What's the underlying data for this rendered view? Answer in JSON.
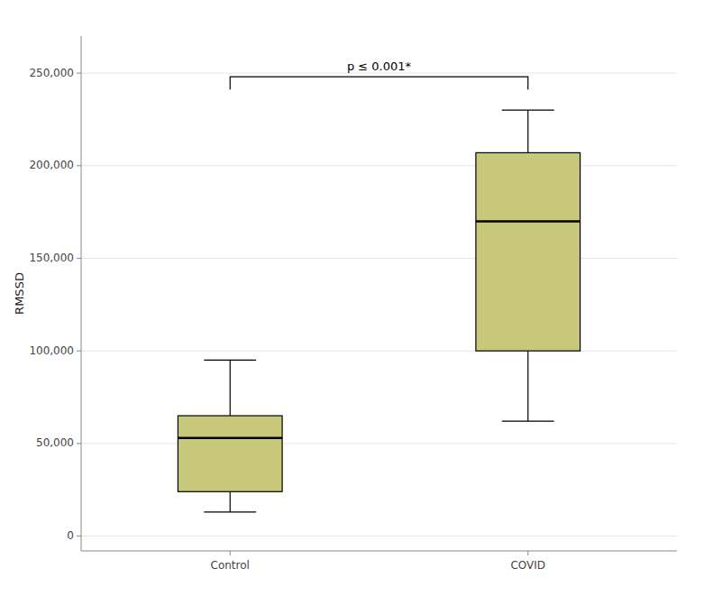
{
  "chart_data": {
    "type": "box",
    "categories": [
      "Control",
      "COVID"
    ],
    "whislo": [
      13000,
      62000
    ],
    "q1": [
      24000,
      100000
    ],
    "med": [
      53000,
      170000
    ],
    "q3": [
      65000,
      207000
    ],
    "whishi": [
      95000,
      230000
    ],
    "color": "#c8c87a",
    "ylabel": "RMSSD",
    "ylim": [
      -8000,
      270000
    ],
    "yticks": [
      0,
      {
        "value": 50000,
        "label": "50,000"
      },
      {
        "value": 100000,
        "label": "100,000"
      },
      {
        "value": 150000,
        "label": "150,000"
      },
      {
        "value": 200000,
        "label": "200,000"
      },
      {
        "value": 250000,
        "label": "250,000"
      }
    ],
    "annotations": [
      {
        "text": "p ≤ 0.001*",
        "y": 248000,
        "from": "Control",
        "to": "COVID"
      }
    ]
  }
}
